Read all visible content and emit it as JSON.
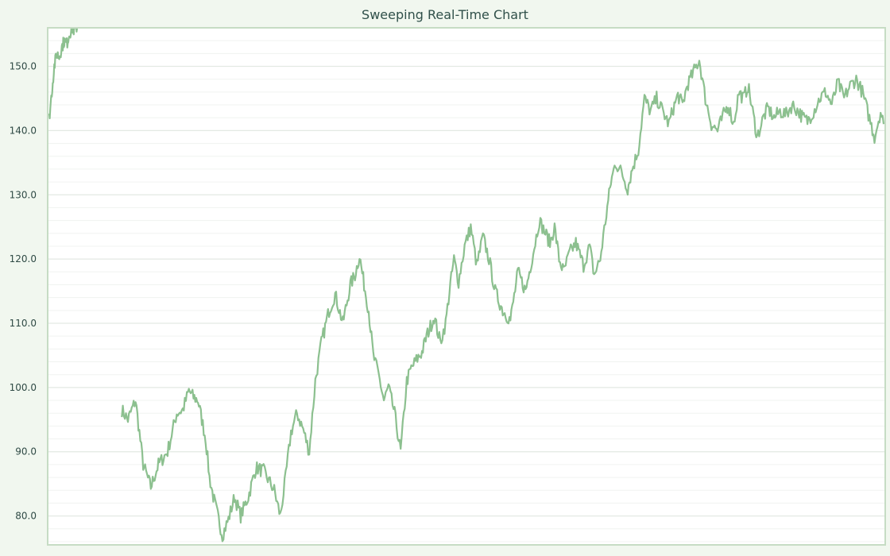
{
  "chart_data": {
    "type": "line",
    "title": "Sweeping Real-Time Chart",
    "xlabel": "",
    "ylabel": "",
    "ylim": [
      75.5,
      156
    ],
    "yticks": [
      "80.0",
      "90.0",
      "100.0",
      "110.0",
      "120.0",
      "130.0",
      "140.0",
      "150.0"
    ],
    "ytick_values": [
      80,
      90,
      100,
      110,
      120,
      130,
      140,
      150
    ],
    "grid": true,
    "legend": "none",
    "colors": {
      "line": "#8cc08f",
      "frame": "#c6dcc4",
      "grid_major": "#e3e9e3",
      "grid_minor": "#f0f3f0",
      "plot_bg": "#ffffff",
      "page_bg": "#f1f7ef"
    },
    "x_domain": [
      0,
      1000
    ],
    "series": [
      {
        "name": "",
        "x": [
          0,
          8,
          18,
          28,
          38,
          48,
          60,
          72,
          80,
          88,
          94,
          100,
          105,
          110,
          115,
          120,
          126,
          132,
          140,
          148,
          156,
          166,
          176,
          186,
          193,
          200,
          208,
          215,
          222,
          230,
          238,
          246,
          254,
          262,
          268,
          272,
          280,
          290,
          300,
          306,
          312,
          318,
          324,
          330,
          337,
          344,
          350,
          358,
          366,
          374,
          380,
          388,
          394,
          400,
          410,
          418,
          425,
          430,
          436,
          442,
          450,
          458,
          466,
          474,
          482,
          490,
          500,
          510,
          520,
          530,
          540,
          548,
          556,
          562,
          568,
          574,
          580,
          588,
          596,
          606,
          614,
          620,
          628,
          636,
          642,
          648,
          656,
          664,
          670,
          678,
          686,
          694,
          702,
          710,
          718,
          724,
          730,
          736,
          742,
          750,
          758,
          766,
          774,
          782,
          790,
          796,
          803,
          810,
          816,
          822,
          828,
          834,
          842,
          848,
          856,
          864,
          872,
          880,
          888,
          894,
          900,
          908,
          916,
          924,
          932,
          940,
          948,
          956,
          964,
          972,
          980,
          988,
          996,
          1000
        ],
        "values": [
          96.5,
          95.0,
          98.0,
          88.0,
          84.5,
          88.0,
          90.0,
          96.0,
          96.5,
          99.5,
          98.5,
          98.0,
          95.0,
          92.0,
          86.0,
          83.0,
          80.0,
          77.0,
          79.5,
          83.0,
          80.0,
          83.0,
          87.5,
          87.0,
          85.5,
          84.0,
          80.0,
          86.0,
          93.0,
          96.0,
          93.5,
          90.0,
          101.0,
          107.0,
          110.0,
          112.0,
          114.5,
          110.0,
          116.0,
          117.5,
          120.5,
          116.0,
          112.0,
          105.0,
          102.0,
          98.0,
          100.0,
          96.0,
          90.0,
          101.0,
          103.0,
          104.5,
          105.5,
          108.0,
          111.0,
          107.0,
          110.0,
          115.0,
          120.0,
          116.5,
          122.0,
          125.0,
          119.0,
          123.5,
          120.0,
          115.0,
          112.0,
          110.5,
          118.0,
          115.0,
          121.0,
          126.0,
          124.0,
          122.5,
          125.0,
          120.0,
          118.0,
          121.0,
          122.5,
          119.0,
          122.0,
          117.5,
          120.0,
          127.0,
          132.0,
          135.0,
          133.5,
          131.0,
          134.0,
          137.0,
          145.0,
          143.0,
          145.0,
          143.0,
          141.0,
          143.5,
          145.5,
          144.0,
          147.0,
          149.0,
          151.0,
          145.0,
          141.0,
          140.0,
          142.5,
          144.0,
          141.0,
          146.0,
          145.0,
          147.0,
          143.0,
          139.0,
          142.0,
          143.5,
          142.0,
          143.0,
          142.5,
          144.0,
          143.0,
          142.0,
          141.5,
          143.0,
          145.0,
          146.0,
          144.0,
          147.5,
          145.0,
          147.0,
          148.0,
          146.0,
          142.5,
          139.0,
          143.0,
          141.0
        ]
      }
    ],
    "sweep": {
      "x": [
        0,
        3,
        6,
        9,
        12,
        15,
        18,
        21,
        24,
        27,
        31,
        34,
        36
      ],
      "values": [
        142.0,
        146.0,
        150.0,
        152.0,
        151.5,
        153.0,
        154.0,
        153.5,
        155.0,
        156.0,
        155.5,
        156.5,
        157.0
      ]
    }
  }
}
